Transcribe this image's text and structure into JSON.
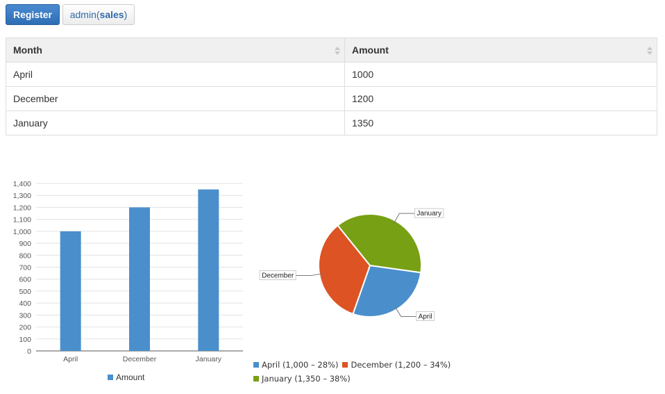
{
  "toolbar": {
    "register_label": "Register",
    "user_name": "admin",
    "user_role": "sales"
  },
  "table": {
    "columns": [
      "Month",
      "Amount"
    ],
    "rows": [
      {
        "month": "April",
        "amount": "1000"
      },
      {
        "month": "December",
        "amount": "1200"
      },
      {
        "month": "January",
        "amount": "1350"
      }
    ]
  },
  "chart_data": [
    {
      "type": "bar",
      "categories": [
        "April",
        "December",
        "January"
      ],
      "series": [
        {
          "name": "Amount",
          "values": [
            1000,
            1200,
            1350
          ],
          "color": "#4a8fcc"
        }
      ],
      "ylim": [
        0,
        1400
      ],
      "yticks": [
        0,
        100,
        200,
        300,
        400,
        500,
        600,
        700,
        800,
        900,
        1000,
        1100,
        1200,
        1300,
        1400
      ],
      "ytick_labels": [
        "0",
        "100",
        "200",
        "300",
        "400",
        "500",
        "600",
        "700",
        "800",
        "900",
        "1,000",
        "1,100",
        "1,200",
        "1,300",
        "1,400"
      ],
      "grid": true,
      "legend": "bottom"
    },
    {
      "type": "pie",
      "slices": [
        {
          "label": "April",
          "value": 1000,
          "color": "#4a8fcc",
          "legend": "April (1,000 – 28%)"
        },
        {
          "label": "December",
          "value": 1200,
          "color": "#dd5324",
          "legend": "December (1,200 – 34%)"
        },
        {
          "label": "January",
          "value": 1350,
          "color": "#77a014",
          "legend": "January (1,350 – 38%)"
        }
      ],
      "legend": "bottom"
    }
  ]
}
